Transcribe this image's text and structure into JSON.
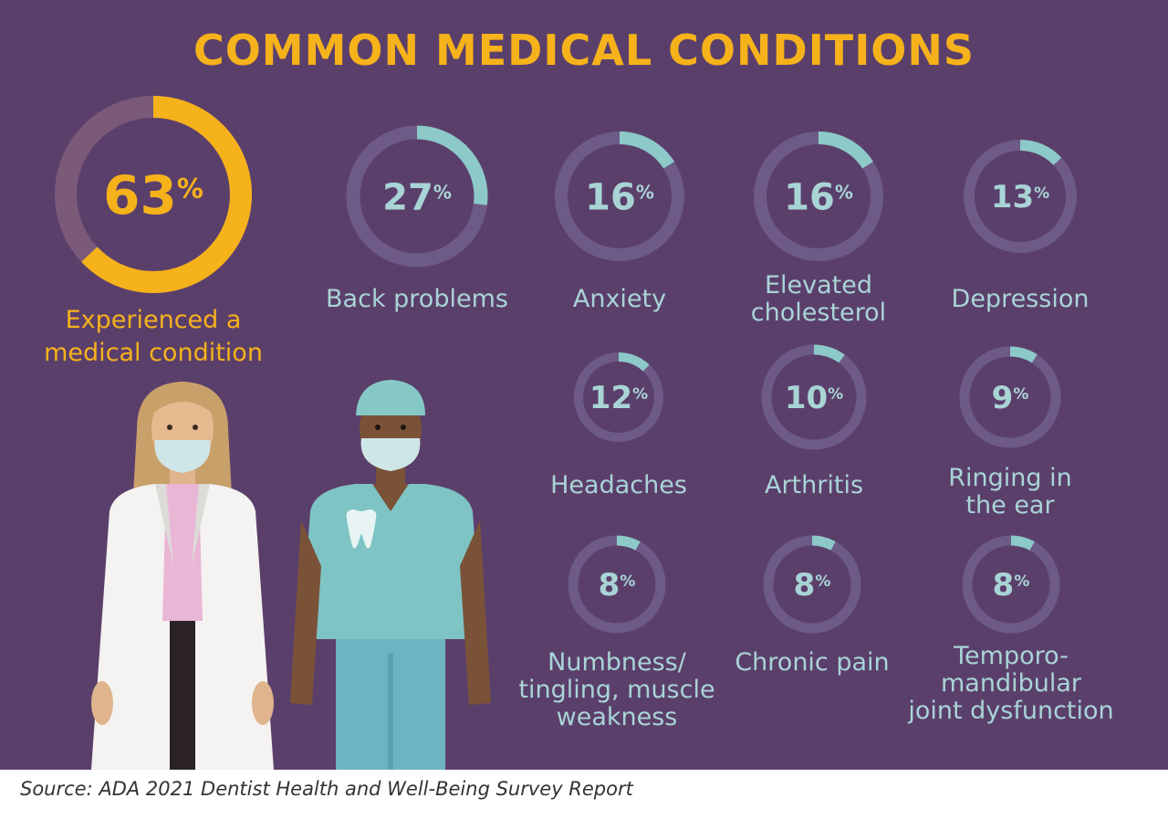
{
  "title": "COMMON MEDICAL CONDITIONS",
  "source": "Source: ADA 2021 Dentist Health and Well-Being Survey Report",
  "colors": {
    "background": "#5b3f6b",
    "accent_gold": "#f6b21b",
    "accent_teal": "#8cc9c8",
    "ring_track": "#6e5a86",
    "label_text": "#a9d4d6"
  },
  "illustration": {
    "figure_1": "dentist-in-white-coat-icon",
    "figure_2": "dental-hygienist-in-scrubs-icon",
    "scrubs_badge": "tooth-icon"
  },
  "chart_data": {
    "type": "donut",
    "title": "COMMON MEDICAL CONDITIONS",
    "unit": "%",
    "highlight": {
      "label_lines": [
        "Experienced a",
        "medical condition"
      ],
      "value": 63
    },
    "categories": [
      {
        "label_lines": [
          "Back problems"
        ],
        "value": 27
      },
      {
        "label_lines": [
          "Anxiety"
        ],
        "value": 16
      },
      {
        "label_lines": [
          "Elevated",
          "cholesterol"
        ],
        "value": 16
      },
      {
        "label_lines": [
          "Depression"
        ],
        "value": 13
      },
      {
        "label_lines": [
          "Headaches"
        ],
        "value": 12
      },
      {
        "label_lines": [
          "Arthritis"
        ],
        "value": 10
      },
      {
        "label_lines": [
          "Ringing in",
          "the ear"
        ],
        "value": 9
      },
      {
        "label_lines": [
          "Numbness/",
          "tingling, muscle",
          "weakness"
        ],
        "value": 8
      },
      {
        "label_lines": [
          "Chronic pain"
        ],
        "value": 8
      },
      {
        "label_lines": [
          "Temporo-",
          "mandibular",
          "joint dysfunction"
        ],
        "value": 8
      }
    ]
  }
}
